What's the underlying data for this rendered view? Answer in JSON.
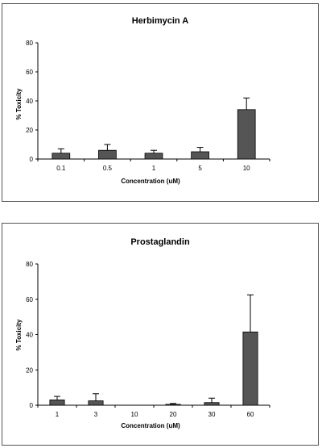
{
  "chart_data": [
    {
      "type": "bar",
      "title": "Herbimycin A",
      "xlabel": "Concentration (uM)",
      "ylabel": "% Toxicity",
      "ylim": [
        0,
        80
      ],
      "yticks": [
        "0",
        "20",
        "40",
        "60",
        "80"
      ],
      "categories": [
        "0.1",
        "0.5",
        "1",
        "5",
        "10"
      ],
      "values": [
        4,
        6,
        4,
        5,
        34
      ],
      "errors": [
        3,
        4,
        2,
        3,
        8
      ],
      "grid": false,
      "legend": "none",
      "bar_color": "#555555"
    },
    {
      "type": "bar",
      "title": "Prostaglandin",
      "xlabel": "Concentration (uM)",
      "ylabel": "% Toxicity",
      "ylim": [
        0,
        80
      ],
      "yticks": [
        "0",
        "20",
        "40",
        "60",
        "80"
      ],
      "categories": [
        "1",
        "3",
        "10",
        "20",
        "30",
        "60"
      ],
      "values": [
        3,
        2.5,
        0,
        0.5,
        1.5,
        41.5
      ],
      "errors": [
        2,
        4,
        0,
        0.5,
        2.5,
        21
      ],
      "grid": false,
      "legend": "none",
      "bar_color": "#555555"
    }
  ]
}
